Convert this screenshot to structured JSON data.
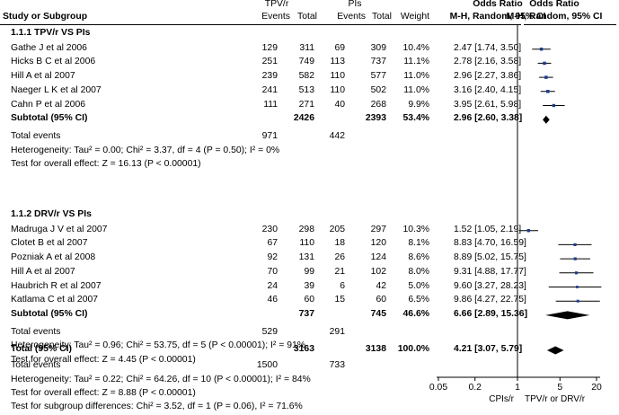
{
  "chart_data": {
    "type": "forest",
    "title": "",
    "header": {
      "col_study": "Study or Subgroup",
      "group1": "TPV/r",
      "group2": "PIs",
      "events": "Events",
      "total": "Total",
      "weight": "Weight",
      "or_title": "Odds Ratio",
      "or_method": "M-H, Random, 95% CI",
      "plot_title": "Odds Ratio",
      "plot_method": "M-H, Random, 95% CI"
    },
    "subgroups": [
      {
        "title": "1.1.1 TPV/r VS PIs",
        "studies": [
          {
            "name": "Gathe J et al 2006",
            "e1": "129",
            "n1": "311",
            "e2": "69",
            "n2": "309",
            "weight": "10.4%",
            "or_text": "2.47 [1.74, 3.50]",
            "or": 2.47,
            "lo": 1.74,
            "hi": 3.5
          },
          {
            "name": "Hicks B C et al 2006",
            "e1": "251",
            "n1": "749",
            "e2": "113",
            "n2": "737",
            "weight": "11.1%",
            "or_text": "2.78 [2.16, 3.58]",
            "or": 2.78,
            "lo": 2.16,
            "hi": 3.58
          },
          {
            "name": "Hill A et al 2007",
            "e1": "239",
            "n1": "582",
            "e2": "110",
            "n2": "577",
            "weight": "11.0%",
            "or_text": "2.96 [2.27, 3.86]",
            "or": 2.96,
            "lo": 2.27,
            "hi": 3.86
          },
          {
            "name": "Naeger L K et al 2007",
            "e1": "241",
            "n1": "513",
            "e2": "110",
            "n2": "502",
            "weight": "11.0%",
            "or_text": "3.16 [2.40, 4.15]",
            "or": 3.16,
            "lo": 2.4,
            "hi": 4.15
          },
          {
            "name": "Cahn P et al 2006",
            "e1": "111",
            "n1": "271",
            "e2": "40",
            "n2": "268",
            "weight": "9.9%",
            "or_text": "3.95 [2.61, 5.98]",
            "or": 3.95,
            "lo": 2.61,
            "hi": 5.98
          }
        ],
        "subtotal": {
          "label": "Subtotal (95% CI)",
          "n1": "2426",
          "n2": "2393",
          "weight": "53.4%",
          "or_text": "2.96 [2.60, 3.38]",
          "or": 2.96,
          "lo": 2.6,
          "hi": 3.38
        },
        "total_events": {
          "label": "Total events",
          "e1": "971",
          "e2": "442"
        },
        "heterogeneity": "Heterogeneity: Tau² = 0.00; Chi² = 3.37, df = 4 (P = 0.50); I² = 0%",
        "overall_effect": "Test for overall effect: Z = 16.13 (P < 0.00001)"
      },
      {
        "title": "1.1.2 DRV/r VS PIs",
        "studies": [
          {
            "name": "Madruga J V et al 2007",
            "e1": "230",
            "n1": "298",
            "e2": "205",
            "n2": "297",
            "weight": "10.3%",
            "or_text": "1.52 [1.05, 2.19]",
            "or": 1.52,
            "lo": 1.05,
            "hi": 2.19
          },
          {
            "name": "Clotet B et al 2007",
            "e1": "67",
            "n1": "110",
            "e2": "18",
            "n2": "120",
            "weight": "8.1%",
            "or_text": "8.83 [4.70, 16.59]",
            "or": 8.83,
            "lo": 4.7,
            "hi": 16.59
          },
          {
            "name": "Pozniak A et al 2008",
            "e1": "92",
            "n1": "131",
            "e2": "26",
            "n2": "124",
            "weight": "8.6%",
            "or_text": "8.89 [5.02, 15.75]",
            "or": 8.89,
            "lo": 5.02,
            "hi": 15.75
          },
          {
            "name": "Hill A et al 2007",
            "e1": "70",
            "n1": "99",
            "e2": "21",
            "n2": "102",
            "weight": "8.0%",
            "or_text": "9.31 [4.88, 17.77]",
            "or": 9.31,
            "lo": 4.88,
            "hi": 17.77
          },
          {
            "name": "Haubrich R et al 2007",
            "e1": "24",
            "n1": "39",
            "e2": "6",
            "n2": "42",
            "weight": "5.0%",
            "or_text": "9.60 [3.27, 28.23]",
            "or": 9.6,
            "lo": 3.27,
            "hi": 28.23
          },
          {
            "name": "Katlama C  et al 2007",
            "e1": "46",
            "n1": "60",
            "e2": "15",
            "n2": "60",
            "weight": "6.5%",
            "or_text": "9.86 [4.27, 22.75]",
            "or": 9.86,
            "lo": 4.27,
            "hi": 22.75
          }
        ],
        "subtotal": {
          "label": "Subtotal (95% CI)",
          "n1": "737",
          "n2": "745",
          "weight": "46.6%",
          "or_text": "6.66 [2.89, 15.36]",
          "or": 6.66,
          "lo": 2.89,
          "hi": 15.36
        },
        "total_events": {
          "label": "Total events",
          "e1": "529",
          "e2": "291"
        },
        "heterogeneity": "Heterogeneity: Tau² = 0.96; Chi² = 53.75, df = 5 (P < 0.00001); I² = 91%",
        "overall_effect": "Test for overall effect: Z = 4.45 (P < 0.00001)"
      }
    ],
    "total": {
      "label": "Total (95% CI)",
      "n1": "3163",
      "n2": "3138",
      "weight": "100.0%",
      "or_text": "4.21 [3.07, 5.79]",
      "or": 4.21,
      "lo": 3.07,
      "hi": 5.79
    },
    "total_events": {
      "label": "Total events",
      "e1": "1500",
      "e2": "733"
    },
    "heterogeneity": "Heterogeneity: Tau² = 0.22; Chi² = 64.26, df = 10 (P < 0.00001); I² = 84%",
    "overall_effect": "Test for overall effect: Z = 8.88 (P < 0.00001)",
    "subgroup_differences": "Test for subgroup differences: Chi² = 3.52, df = 1 (P = 0.06), I² = 71.6%",
    "x_axis": {
      "scale": "log",
      "ticks": [
        0.05,
        0.2,
        1,
        5,
        20
      ],
      "tick_labels": [
        "0.05",
        "0.2",
        "1",
        "5",
        "20"
      ],
      "xlim": [
        0.04,
        30
      ],
      "label_left": "CPIs/r",
      "label_right": "TPV/r or DRV/r"
    },
    "colors": {
      "study_marker": "#1f3d8c",
      "ci_line": "#000000",
      "diamond": "#000000"
    }
  }
}
